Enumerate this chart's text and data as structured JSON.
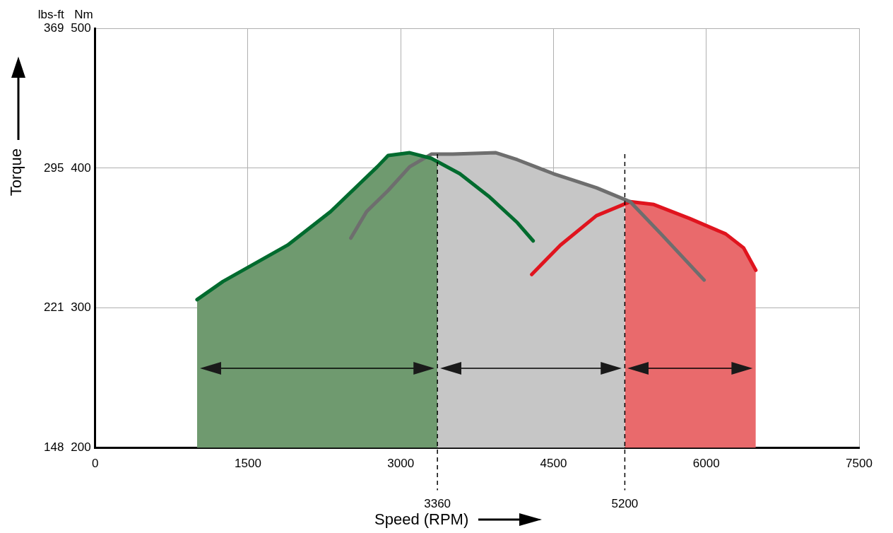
{
  "chart_data": {
    "type": "line",
    "ylabel": "Torque",
    "xlabel": "Speed (RPM)",
    "y2label": "Nm",
    "annotations": [
      "lbs-ft"
    ],
    "xlim": [
      0,
      7500
    ],
    "xticks": [
      0,
      1500,
      3000,
      4500,
      6000,
      7500
    ],
    "ylim": [
      147.5,
      368.8
    ],
    "yticks": [
      {
        "value": 147.5,
        "label": "148"
      },
      {
        "value": 221.3,
        "label": "221"
      },
      {
        "value": 295,
        "label": "295"
      },
      {
        "value": 368.8,
        "label": "369"
      }
    ],
    "y2lim": [
      200,
      500
    ],
    "y2ticks": [
      200,
      300,
      400,
      500
    ],
    "grid": true,
    "legend": false,
    "marker": "none",
    "line_style": "solid",
    "ref_lines": [
      {
        "axis": "x",
        "value": 3360,
        "label": "3360",
        "line_style": "dashed",
        "color": "#000000"
      },
      {
        "axis": "x",
        "value": 5200,
        "label": "5200",
        "line_style": "dashed",
        "color": "#000000"
      }
    ],
    "series": [
      {
        "type": "area",
        "axis": "y2",
        "color": "#6f9a6f",
        "x": [
          1000,
          1255,
          1890,
          2312,
          2770,
          2876,
          3088,
          3300,
          3360
        ],
        "values": [
          306,
          319,
          345,
          369,
          401,
          409,
          411,
          407,
          406
        ]
      },
      {
        "type": "area",
        "axis": "y2",
        "color": "#c6c6c6",
        "x": [
          3360,
          3511,
          3934,
          4145,
          4500,
          4921,
          5200
        ],
        "values": [
          410,
          410,
          411,
          406,
          396,
          386,
          377
        ]
      },
      {
        "type": "area",
        "axis": "y2",
        "color": "#e96a6c",
        "x": [
          5200,
          5252,
          5485,
          5837,
          6190,
          6366,
          6486
        ],
        "values": [
          376,
          376,
          374,
          364,
          353,
          343,
          327
        ]
      },
      {
        "type": "line",
        "axis": "y2",
        "color": "#006b2e",
        "x": [
          1000,
          1255,
          1890,
          2312,
          2770,
          2876,
          3088,
          3300,
          3580,
          3862,
          4145,
          4300
        ],
        "values": [
          306,
          319,
          345,
          369,
          401,
          409,
          411,
          407,
          396,
          380,
          361,
          348
        ]
      },
      {
        "type": "line",
        "axis": "y2",
        "color": "#6e6e6e",
        "x": [
          2510,
          2665,
          2876,
          3088,
          3300,
          3511,
          3934,
          4145,
          4500,
          4921,
          5252,
          5555,
          5978
        ],
        "values": [
          350,
          369,
          384,
          401,
          410,
          410,
          411,
          406,
          396,
          386,
          376,
          353,
          320
        ]
      },
      {
        "type": "line",
        "axis": "y2",
        "color": "#e0141e",
        "x": [
          4286,
          4568,
          4921,
          5252,
          5485,
          5837,
          6190,
          6366,
          6486
        ],
        "values": [
          324,
          345,
          366,
          376,
          374,
          364,
          353,
          343,
          327
        ]
      }
    ]
  }
}
